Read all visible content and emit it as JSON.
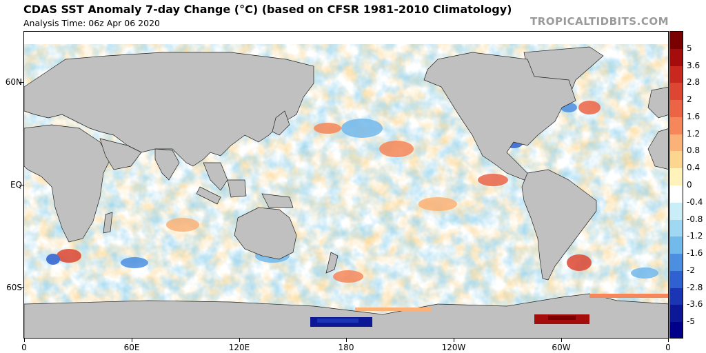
{
  "header": {
    "title": "CDAS SST Anomaly 7-day Change (°C) (based on CFSR 1981-2010 Climatology)",
    "subtitle": "Analysis Time: 06z Apr 06 2020",
    "credit": "TROPICALTIDBITS.COM"
  },
  "map": {
    "projection": "equirectangular",
    "lon_range": [
      0,
      360
    ],
    "lat_range": [
      -90,
      90
    ],
    "lat_ticks": [
      "60N",
      "EQ",
      "60S"
    ],
    "lon_ticks": [
      "0",
      "60E",
      "120E",
      "180",
      "120W",
      "60W",
      "0"
    ],
    "land_color": "#c0c0c0",
    "field": "SST anomaly 7-day change"
  },
  "colorbar": {
    "unit": "°C",
    "labels": [
      "5",
      "3.6",
      "2.8",
      "2",
      "1.6",
      "1.2",
      "0.8",
      "0.4",
      "0",
      "-0.4",
      "-0.8",
      "-1.2",
      "-1.6",
      "-2",
      "-2.8",
      "-3.6",
      "-5"
    ],
    "colors": [
      "#7a0000",
      "#a50c0c",
      "#c8281e",
      "#dc4632",
      "#eb6446",
      "#f5875a",
      "#fab278",
      "#fcd68f",
      "#fff2ba",
      "#ffffff",
      "#c9eef8",
      "#9fd8f2",
      "#72b9ec",
      "#4c8fe0",
      "#2f61d0",
      "#1a36b4",
      "#0d1896",
      "#00008a"
    ]
  }
}
